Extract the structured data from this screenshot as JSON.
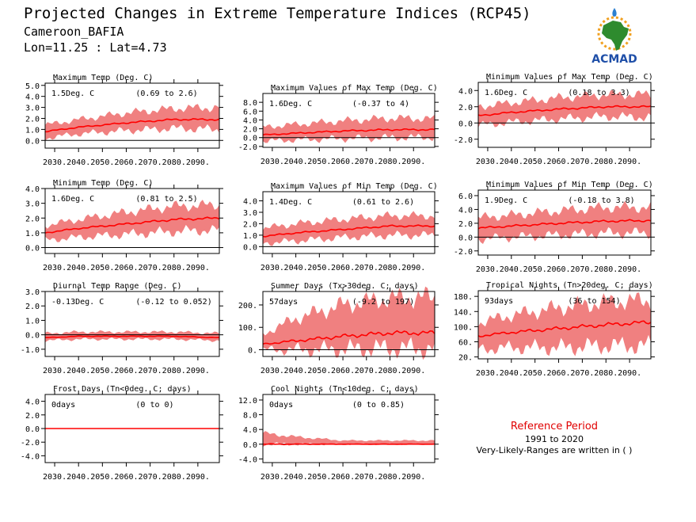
{
  "header": {
    "title": "Projected Changes in Extreme Temperature Indices (RCP45)",
    "location": "Cameroon_BAFIA",
    "coords": "Lon=11.25 : Lat=4.73"
  },
  "logo": {
    "text": "ACMAD",
    "colors": {
      "africa": "#2e8b2e",
      "text": "#1f4fa8",
      "sun": "#f0a020",
      "drop": "#2a7fd0"
    }
  },
  "reference": {
    "title": "Reference Period",
    "years": "1991 to 2020",
    "note": "Very-Likely-Ranges are written in ( )"
  },
  "colors": {
    "band": "#f08080",
    "line": "#ff0000",
    "zero": "#000000"
  },
  "chart_data": [
    {
      "type": "area",
      "title": "Maximum Temp (Deg. C)",
      "value_label": "1.5Deg. C",
      "range_label": "(0.69 to 2.6)",
      "xticks": [
        "2030.",
        "2040.",
        "2050.",
        "2060.",
        "2070.",
        "2080.",
        "2090."
      ],
      "xlim": [
        2026,
        2099
      ],
      "ylim": [
        -0.7,
        5.2
      ],
      "yticks": [
        0,
        1,
        2,
        3,
        4,
        5
      ],
      "ytick_labels": [
        "0.0",
        "1.0",
        "2.0",
        "3.0",
        "4.0",
        "5.0"
      ],
      "mean": {
        "x": [
          2026,
          2040,
          2060,
          2080,
          2099
        ],
        "y": [
          0.8,
          1.2,
          1.6,
          1.9,
          1.9
        ]
      },
      "low": {
        "x": [
          2026,
          2040,
          2060,
          2080,
          2099
        ],
        "y": [
          0.2,
          0.6,
          0.9,
          1.1,
          1.0
        ]
      },
      "high": {
        "x": [
          2026,
          2040,
          2060,
          2080,
          2099
        ],
        "y": [
          1.4,
          1.9,
          2.5,
          2.9,
          3.0
        ]
      }
    },
    {
      "type": "area",
      "title": "Maximum Values of Max Temp (Deg. C)",
      "value_label": "1.6Deg. C",
      "range_label": "(-0.37 to 4)",
      "xticks": [
        "2030.",
        "2040.",
        "2050.",
        "2060.",
        "2070.",
        "2080.",
        "2090."
      ],
      "xlim": [
        2026,
        2099
      ],
      "ylim": [
        -2.2,
        10
      ],
      "yticks": [
        -2,
        0,
        2,
        4,
        6,
        8
      ],
      "ytick_labels": [
        "-2.0",
        "0.0",
        "2.0",
        "4.0",
        "6.0",
        "8.0"
      ],
      "mean": {
        "x": [
          2026,
          2040,
          2060,
          2080,
          2099
        ],
        "y": [
          0.6,
          1.0,
          1.5,
          1.8,
          1.8
        ]
      },
      "low": {
        "x": [
          2026,
          2040,
          2060,
          2080,
          2099
        ],
        "y": [
          -0.8,
          -0.5,
          -0.2,
          0.0,
          0.1
        ]
      },
      "high": {
        "x": [
          2026,
          2040,
          2060,
          2080,
          2099
        ],
        "y": [
          2.4,
          3.0,
          3.8,
          4.4,
          4.3
        ]
      }
    },
    {
      "type": "area",
      "title": "Minimum Values of Max Temp (Deg. C)",
      "value_label": "1.6Deg. C",
      "range_label": "(0.18 to 3.3)",
      "xticks": [
        "2030.",
        "2040.",
        "2050.",
        "2060.",
        "2070.",
        "2080.",
        "2090."
      ],
      "xlim": [
        2026,
        2099
      ],
      "ylim": [
        -3,
        5
      ],
      "yticks": [
        -2,
        0,
        2,
        4
      ],
      "ytick_labels": [
        "-2.0",
        "0.0",
        "2.0",
        "4.0"
      ],
      "mean": {
        "x": [
          2026,
          2040,
          2060,
          2080,
          2099
        ],
        "y": [
          0.9,
          1.3,
          1.7,
          2.0,
          2.0
        ]
      },
      "low": {
        "x": [
          2026,
          2040,
          2060,
          2080,
          2099
        ],
        "y": [
          -0.3,
          0.1,
          0.5,
          0.8,
          0.7
        ]
      },
      "high": {
        "x": [
          2026,
          2040,
          2060,
          2080,
          2099
        ],
        "y": [
          2.0,
          2.5,
          3.1,
          3.5,
          3.5
        ]
      }
    },
    {
      "type": "area",
      "title": "Minimum Temp (Deg. C)",
      "value_label": "1.6Deg. C",
      "range_label": "(0.81 to 2.5)",
      "xticks": [
        "2030.",
        "2040.",
        "2050.",
        "2060.",
        "2070.",
        "2080.",
        "2090."
      ],
      "xlim": [
        2026,
        2099
      ],
      "ylim": [
        -0.4,
        4.0
      ],
      "yticks": [
        0,
        1,
        2,
        3,
        4
      ],
      "ytick_labels": [
        "0.0",
        "1.0",
        "2.0",
        "3.0",
        "4.0"
      ],
      "mean": {
        "x": [
          2026,
          2040,
          2060,
          2080,
          2099
        ],
        "y": [
          1.0,
          1.3,
          1.6,
          1.9,
          2.0
        ]
      },
      "low": {
        "x": [
          2026,
          2040,
          2060,
          2080,
          2099
        ],
        "y": [
          0.5,
          0.7,
          0.9,
          1.1,
          1.2
        ]
      },
      "high": {
        "x": [
          2026,
          2040,
          2060,
          2080,
          2099
        ],
        "y": [
          1.5,
          1.9,
          2.4,
          2.8,
          2.9
        ]
      }
    },
    {
      "type": "area",
      "title": "Maximum Values of Min Temp (Deg. C)",
      "value_label": "1.4Deg. C",
      "range_label": "(0.61 to 2.6)",
      "xticks": [
        "2030.",
        "2040.",
        "2050.",
        "2060.",
        "2070.",
        "2080.",
        "2090."
      ],
      "xlim": [
        2026,
        2099
      ],
      "ylim": [
        -0.6,
        4.8
      ],
      "yticks": [
        0,
        1,
        2,
        3,
        4
      ],
      "ytick_labels": [
        "0.0",
        "1.0",
        "2.0",
        "3.0",
        "4.0"
      ],
      "mean": {
        "x": [
          2026,
          2040,
          2060,
          2080,
          2099
        ],
        "y": [
          0.9,
          1.2,
          1.5,
          1.8,
          1.8
        ]
      },
      "low": {
        "x": [
          2026,
          2040,
          2060,
          2080,
          2099
        ],
        "y": [
          0.3,
          0.5,
          0.8,
          1.0,
          1.0
        ]
      },
      "high": {
        "x": [
          2026,
          2040,
          2060,
          2080,
          2099
        ],
        "y": [
          1.6,
          2.0,
          2.4,
          2.7,
          2.7
        ]
      }
    },
    {
      "type": "area",
      "title": "Minimum Values of Min Temp (Deg. C)",
      "value_label": "1.9Deg. C",
      "range_label": "(-0.18 to 3.8)",
      "xticks": [
        "2030.",
        "2040.",
        "2050.",
        "2060.",
        "2070.",
        "2080.",
        "2090."
      ],
      "xlim": [
        2026,
        2099
      ],
      "ylim": [
        -2.6,
        6.8
      ],
      "yticks": [
        -2,
        0,
        2,
        4,
        6
      ],
      "ytick_labels": [
        "-2.0",
        "0.0",
        "2.0",
        "4.0",
        "6.0"
      ],
      "mean": {
        "x": [
          2026,
          2040,
          2060,
          2080,
          2099
        ],
        "y": [
          1.3,
          1.6,
          2.0,
          2.3,
          2.4
        ]
      },
      "low": {
        "x": [
          2026,
          2040,
          2060,
          2080,
          2099
        ],
        "y": [
          -0.3,
          0.0,
          0.3,
          0.6,
          0.6
        ]
      },
      "high": {
        "x": [
          2026,
          2040,
          2060,
          2080,
          2099
        ],
        "y": [
          2.8,
          3.2,
          3.8,
          4.3,
          4.3
        ]
      }
    },
    {
      "type": "area",
      "title": "Diurnal Temp Range (Deg. C)",
      "value_label": "-0.13Deg. C",
      "range_label": "(-0.12 to 0.052)",
      "xticks": [
        "2030.",
        "2040.",
        "2050.",
        "2060.",
        "2070.",
        "2080.",
        "2090."
      ],
      "xlim": [
        2026,
        2099
      ],
      "ylim": [
        -1.5,
        3.0
      ],
      "yticks": [
        -1,
        0,
        1,
        2,
        3
      ],
      "ytick_labels": [
        "-1.0",
        "0.0",
        "1.0",
        "2.0",
        "3.0"
      ],
      "mean": {
        "x": [
          2026,
          2040,
          2060,
          2080,
          2099
        ],
        "y": [
          -0.2,
          -0.1,
          -0.1,
          -0.1,
          -0.2
        ]
      },
      "low": {
        "x": [
          2026,
          2040,
          2060,
          2080,
          2099
        ],
        "y": [
          -0.4,
          -0.3,
          -0.3,
          -0.3,
          -0.4
        ]
      },
      "high": {
        "x": [
          2026,
          2040,
          2060,
          2080,
          2099
        ],
        "y": [
          0.1,
          0.2,
          0.2,
          0.2,
          0.1
        ]
      }
    },
    {
      "type": "area",
      "title": "Summer Days (Tx>30deg. C; days)",
      "value_label": "57days",
      "range_label": "(-9.2 to 197)",
      "xticks": [
        "2030.",
        "2040.",
        "2050.",
        "2060.",
        "2070.",
        "2080.",
        "2090."
      ],
      "xlim": [
        2026,
        2099
      ],
      "ylim": [
        -30,
        260
      ],
      "yticks": [
        0,
        100,
        200
      ],
      "ytick_labels": [
        "0.",
        "100.",
        "200."
      ],
      "mean": {
        "x": [
          2026,
          2040,
          2060,
          2080,
          2099
        ],
        "y": [
          25,
          40,
          60,
          75,
          75
        ]
      },
      "low": {
        "x": [
          2026,
          2040,
          2060,
          2080,
          2099
        ],
        "y": [
          0,
          0,
          3,
          8,
          5
        ]
      },
      "high": {
        "x": [
          2026,
          2040,
          2060,
          2080,
          2099
        ],
        "y": [
          70,
          140,
          200,
          230,
          235
        ]
      }
    },
    {
      "type": "area",
      "title": "Tropical Nights (Tn>20deg. C; days)",
      "value_label": "93days",
      "range_label": "(36 to 154)",
      "xticks": [
        "2030.",
        "2040.",
        "2050.",
        "2060.",
        "2070.",
        "2080.",
        "2090."
      ],
      "xlim": [
        2026,
        2099
      ],
      "ylim": [
        15,
        195
      ],
      "yticks": [
        20,
        60,
        100,
        140,
        180
      ],
      "ytick_labels": [
        "20.",
        "60.",
        "100.",
        "140.",
        "180."
      ],
      "mean": {
        "x": [
          2026,
          2040,
          2060,
          2080,
          2099
        ],
        "y": [
          75,
          85,
          95,
          105,
          112
        ]
      },
      "low": {
        "x": [
          2026,
          2040,
          2060,
          2080,
          2099
        ],
        "y": [
          40,
          45,
          45,
          50,
          50
        ]
      },
      "high": {
        "x": [
          2026,
          2040,
          2060,
          2080,
          2099
        ],
        "y": [
          110,
          130,
          150,
          165,
          170
        ]
      }
    },
    {
      "type": "area",
      "title": "Frost Days (Tn<0deg. C; days)",
      "value_label": "0days",
      "range_label": "(0 to 0)",
      "xticks": [
        "2030.",
        "2040.",
        "2050.",
        "2060.",
        "2070.",
        "2080.",
        "2090."
      ],
      "xlim": [
        2026,
        2099
      ],
      "ylim": [
        -5,
        5
      ],
      "yticks": [
        -4,
        -2,
        0,
        2,
        4
      ],
      "ytick_labels": [
        "-4.0",
        "-2.0",
        "0.0",
        "2.0",
        "4.0"
      ],
      "mean": {
        "x": [
          2026,
          2099
        ],
        "y": [
          0,
          0
        ]
      },
      "low": {
        "x": [
          2026,
          2099
        ],
        "y": [
          0,
          0
        ]
      },
      "high": {
        "x": [
          2026,
          2099
        ],
        "y": [
          0,
          0
        ]
      }
    },
    {
      "type": "area",
      "title": "Cool Nights (Tn<10deg. C; days)",
      "value_label": "0days",
      "range_label": "(0 to 0.85)",
      "xticks": [
        "2030.",
        "2040.",
        "2050.",
        "2060.",
        "2070.",
        "2080.",
        "2090."
      ],
      "xlim": [
        2026,
        2099
      ],
      "ylim": [
        -5,
        13.5
      ],
      "yticks": [
        -4,
        0,
        4,
        8,
        12
      ],
      "ytick_labels": [
        "-4.0",
        "0.0",
        "4.0",
        "8.0",
        "12.0"
      ],
      "mean": {
        "x": [
          2026,
          2099
        ],
        "y": [
          0,
          0
        ]
      },
      "low": {
        "x": [
          2026,
          2099
        ],
        "y": [
          0,
          0
        ]
      },
      "high": {
        "x": [
          2026,
          2040,
          2060,
          2080,
          2099
        ],
        "y": [
          3,
          2,
          1,
          1,
          1
        ]
      }
    }
  ]
}
